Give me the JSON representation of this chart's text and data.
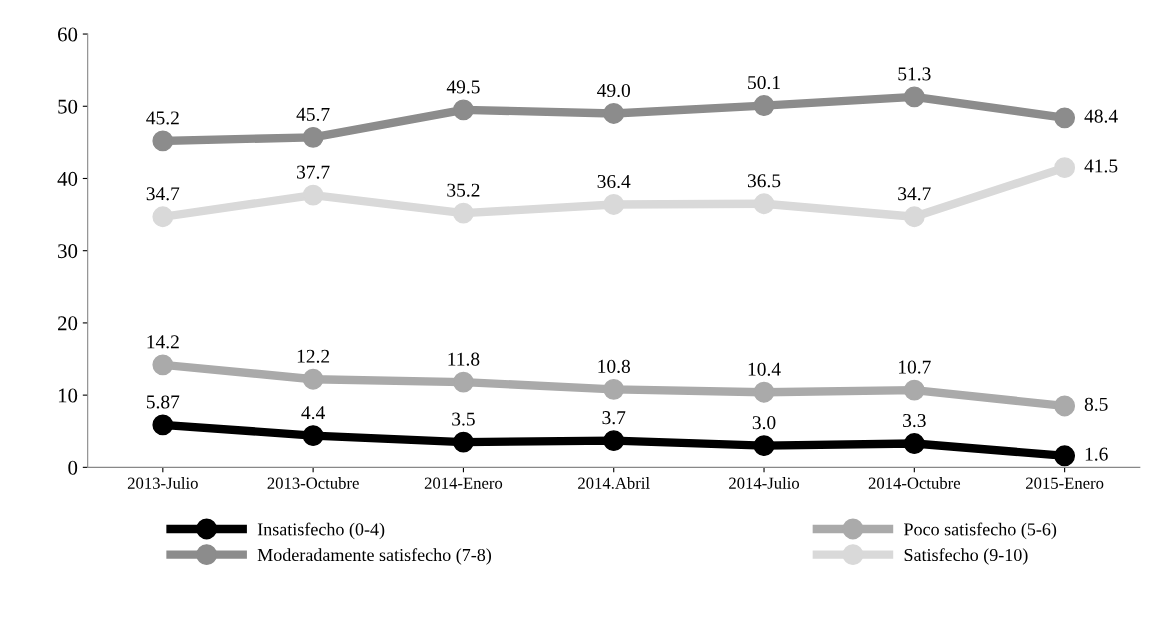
{
  "chart_data": {
    "type": "line",
    "categories": [
      "2013-Julio",
      "2013-Octubre",
      "2014-Enero",
      "2014.Abril",
      "2014-Julio",
      "2014-Octubre",
      "2015-Enero"
    ],
    "series": [
      {
        "name": "Insatisfecho (0-4)",
        "color": "#000000",
        "values": [
          5.87,
          4.4,
          3.5,
          3.7,
          3.0,
          3.3,
          1.6
        ],
        "value_labels": [
          "5.87",
          "4.4",
          "3.5",
          "3.7",
          "3.0",
          "3.3",
          "1.6"
        ]
      },
      {
        "name": "Poco satisfecho (5-6)",
        "color": "#aaaaaa",
        "values": [
          14.2,
          12.2,
          11.8,
          10.8,
          10.4,
          10.7,
          8.5
        ],
        "value_labels": [
          "14.2",
          "12.2",
          "11.8",
          "10.8",
          "10.4",
          "10.7",
          "8.5"
        ]
      },
      {
        "name": "Moderadamente satisfecho (7-8)",
        "color": "#8c8c8c",
        "values": [
          45.2,
          45.7,
          49.5,
          49.0,
          50.1,
          51.3,
          48.4
        ],
        "value_labels": [
          "45.2",
          "45.7",
          "49.5",
          "49.0",
          "50.1",
          "51.3",
          "48.4"
        ]
      },
      {
        "name": "Satisfecho (9-10)",
        "color": "#d9d9d9",
        "values": [
          34.7,
          37.7,
          35.2,
          36.4,
          36.5,
          34.7,
          41.5
        ],
        "value_labels": [
          "34.7",
          "37.7",
          "35.2",
          "36.4",
          "36.5",
          "34.7",
          "41.5"
        ]
      }
    ],
    "ylim": [
      0,
      60
    ],
    "yticks": [
      0,
      10,
      20,
      30,
      40,
      50,
      60
    ],
    "grid": false,
    "legend": "bottom",
    "marker": "circle",
    "line_style": "solid"
  }
}
